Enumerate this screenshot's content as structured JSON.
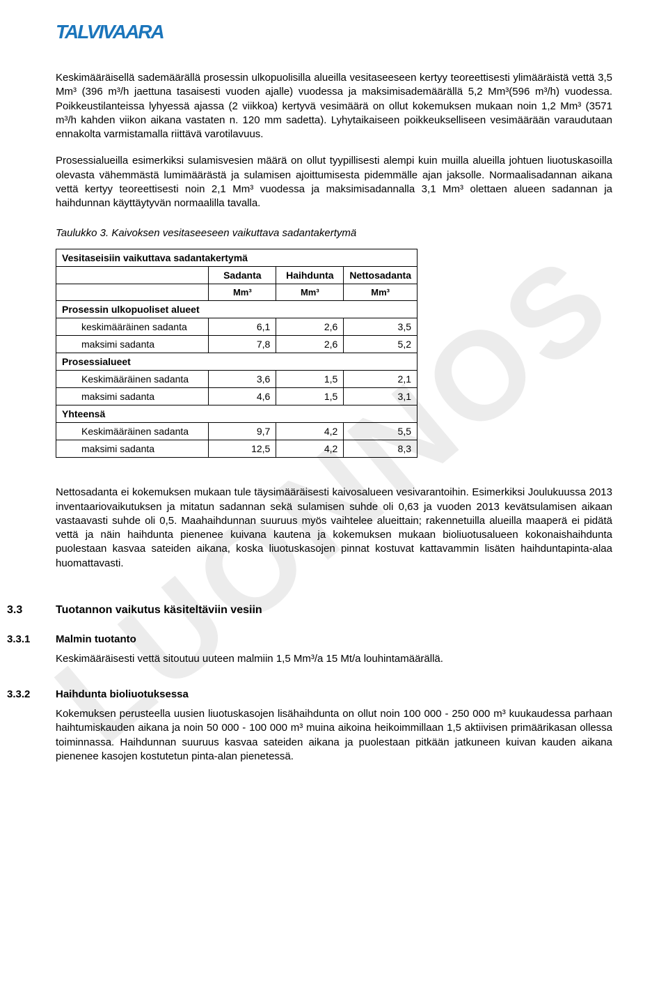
{
  "watermark": "LUONNOS",
  "logo": "TALVIVAARA",
  "paragraphs": {
    "p1": "Keskimääräisellä sademäärällä prosessin ulkopuolisilla alueilla vesitaseeseen kertyy teoreettisesti ylimääräistä vettä 3,5 Mm³ (396 m³/h jaettuna tasaisesti vuoden ajalle) vuodessa ja maksimisademäärällä 5,2 Mm³(596 m³/h) vuodessa. Poikkeustilanteissa lyhyessä ajassa (2 viikkoa) kertyvä vesimäärä on ollut kokemuksen mukaan noin 1,2 Mm³ (3571 m³/h kahden viikon aikana vastaten n. 120 mm sadetta). Lyhytaikaiseen poikkeukselliseen vesimäärään varaudutaan ennakolta varmistamalla riittävä varotilavuus.",
    "p2": "Prosessialueilla esimerkiksi sulamisvesien määrä on ollut tyypillisesti alempi kuin muilla alueilla johtuen liuotuskasoilla olevasta vähemmästä lumimäärästä ja sulamisen ajoittumisesta pidemmälle ajan jaksolle. Normaalisadannan aikana vettä kertyy teoreettisesti noin 2,1 Mm³ vuodessa ja maksimisadannalla 3,1 Mm³ olettaen alueen sadannan ja haihdunnan käyttäytyvän normaalilla tavalla.",
    "caption": "Taulukko 3. Kaivoksen vesitaseeseen vaikuttava sadantakertymä",
    "p3": "Nettosadanta ei kokemuksen mukaan tule täysimääräisesti kaivosalueen vesivarantoihin. Esimerkiksi Joulukuussa 2013 inventaariovaikutuksen ja mitatun sadannan sekä sulamisen suhde oli 0,63 ja vuoden 2013 kevätsulamisen aikaan vastaavasti suhde oli 0,5. Maahaihdunnan suuruus myös vaihtelee alueittain; rakennetuilla alueilla maaperä ei pidätä vettä ja näin haihdunta pienenee kuivana kautena ja kokemuksen mukaan bioliuotusalueen kokonaishaihdunta puolestaan kasvaa sateiden aikana, koska liuotuskasojen pinnat kostuvat kattavammin lisäten haihduntapinta-alaa huomattavasti.",
    "p4": "Keskimääräisesti vettä sitoutuu uuteen malmiin 1,5 Mm³/a 15 Mt/a louhintamäärällä.",
    "p5": "Kokemuksen perusteella uusien liuotuskasojen lisähaihdunta on ollut noin 100 000 - 250 000 m³ kuukaudessa parhaan haihtumiskauden aikana ja noin 50 000 - 100 000 m³ muina aikoina heikoimmillaan 1,5 aktiivisen primäärikasan ollessa toiminnassa. Haihdunnan suuruus kasvaa sateiden aikana ja puolestaan pitkään jatkuneen kuivan kauden aikana pienenee kasojen kostutetun pinta-alan pienetessä."
  },
  "sections": {
    "s33_num": "3.3",
    "s33_title": "Tuotannon vaikutus käsiteltäviin vesiin",
    "s331_num": "3.3.1",
    "s331_title": "Malmin tuotanto",
    "s332_num": "3.3.2",
    "s332_title": "Haihdunta bioliuotuksessa"
  },
  "table": {
    "title": "Vesitaseisiin vaikuttava sadantakertymä",
    "col_label": "",
    "col_sadanta": "Sadanta",
    "col_haihdunta": "Haihdunta",
    "col_netto": "Nettosadanta",
    "unit": "Mm³",
    "groups": [
      {
        "name": "Prosessin ulkopuoliset alueet",
        "rows": [
          {
            "label": "keskimääräinen sadanta",
            "v": [
              "6,1",
              "2,6",
              "3,5"
            ]
          },
          {
            "label": "maksimi sadanta",
            "v": [
              "7,8",
              "2,6",
              "5,2"
            ]
          }
        ]
      },
      {
        "name": "Prosessialueet",
        "rows": [
          {
            "label": "Keskimääräinen sadanta",
            "v": [
              "3,6",
              "1,5",
              "2,1"
            ]
          },
          {
            "label": "maksimi sadanta",
            "v": [
              "4,6",
              "1,5",
              "3,1"
            ]
          }
        ]
      },
      {
        "name": "Yhteensä",
        "rows": [
          {
            "label": "Keskimääräinen sadanta",
            "v": [
              "9,7",
              "4,2",
              "5,5"
            ]
          },
          {
            "label": "maksimi sadanta",
            "v": [
              "12,5",
              "4,2",
              "8,3"
            ]
          }
        ]
      }
    ]
  },
  "colors": {
    "brand": "#1b75bb",
    "text": "#000000",
    "watermark": "#ececec",
    "border": "#000000",
    "background": "#ffffff"
  },
  "typography": {
    "body_pt": 15,
    "caption_style": "italic",
    "heading_weight": 700,
    "font_family": "Arial"
  }
}
